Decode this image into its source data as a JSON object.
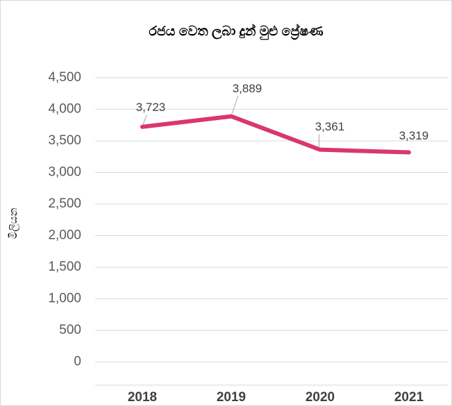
{
  "chart_data": {
    "type": "line",
    "title": "රජය වෙත ලබා දුන් මුළු ප්‍රේෂණ",
    "y_label": "මිලියන",
    "categories": [
      "2018",
      "2019",
      "2020",
      "2021"
    ],
    "series": [
      {
        "name": "මුළු ප්‍රේෂණ",
        "color": "#d9376e",
        "values": [
          3723,
          3889,
          3361,
          3319
        ],
        "value_labels": [
          "3,723",
          "3,889",
          "3,361",
          "3,319"
        ]
      }
    ],
    "ylim": [
      -367,
      4500
    ],
    "yticks": [
      0,
      500,
      {
        "value": 1000,
        "label": "1,000"
      },
      {
        "value": 1500,
        "label": "1,500"
      },
      {
        "value": 2000,
        "label": "2,000"
      },
      {
        "value": 2500,
        "label": "2,500"
      },
      {
        "value": 3000,
        "label": "3,000"
      },
      {
        "value": 3500,
        "label": "3,500"
      },
      {
        "value": 4000,
        "label": "4,000"
      },
      {
        "value": 4500,
        "label": "4,500"
      }
    ],
    "grid": true
  }
}
